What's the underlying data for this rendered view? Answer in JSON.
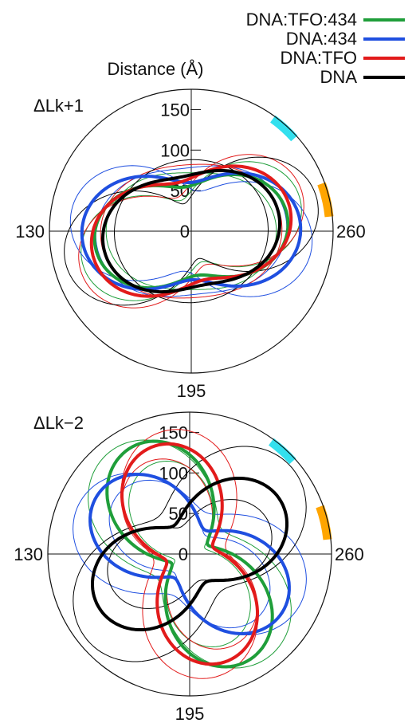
{
  "chart_data": {
    "type": "polar-line",
    "legend": {
      "placement": "top-right",
      "entries": [
        {
          "label": "DNA:TFO:434",
          "color": "#1f9e3a"
        },
        {
          "label": "DNA:434",
          "color": "#1f4fe0"
        },
        {
          "label": "DNA:TFO",
          "color": "#e21b1b"
        },
        {
          "label": "DNA",
          "color": "#000000"
        }
      ]
    },
    "radial_axis": {
      "label": "Distance (Å)",
      "ticks": [
        0,
        50,
        100,
        150
      ],
      "max": 175
    },
    "angular_labels": {
      "left": "130",
      "right": "260",
      "bottom": "195"
    },
    "highlight_colors": {
      "cyan": "#33e0ee",
      "orange": "#ffa500"
    },
    "panels": [
      {
        "label": "ΔLk+1",
        "highlights": [
          {
            "color": "cyan",
            "start_deg": 42,
            "end_deg": 54
          },
          {
            "color": "orange",
            "start_deg": 6,
            "end_deg": 20
          }
        ],
        "series": [
          {
            "name": "DNA:TFO:434",
            "weight": "thick",
            "lobe_deg": 8,
            "r_lobe": 120,
            "r_pinch": 55
          },
          {
            "name": "DNA:434",
            "weight": "thick",
            "lobe_deg": 2,
            "r_lobe": 135,
            "r_pinch": 60
          },
          {
            "name": "DNA:TFO",
            "weight": "thick",
            "lobe_deg": 14,
            "r_lobe": 125,
            "r_pinch": 62
          },
          {
            "name": "DNA",
            "weight": "thick",
            "lobe_deg": 11,
            "r_lobe": 110,
            "r_pinch": 68
          },
          {
            "name": "DNA:TFO:434",
            "weight": "thin",
            "lobe_deg": 18,
            "r_lobe": 140,
            "r_pinch": 40
          },
          {
            "name": "DNA:TFO:434",
            "weight": "thin",
            "lobe_deg": 0,
            "r_lobe": 105,
            "r_pinch": 72
          },
          {
            "name": "DNA:434",
            "weight": "thin",
            "lobe_deg": -8,
            "r_lobe": 150,
            "r_pinch": 50
          },
          {
            "name": "DNA:434",
            "weight": "thin",
            "lobe_deg": 6,
            "r_lobe": 118,
            "r_pinch": 78
          },
          {
            "name": "DNA:TFO",
            "weight": "thin",
            "lobe_deg": 22,
            "r_lobe": 145,
            "r_pinch": 45
          },
          {
            "name": "DNA:TFO",
            "weight": "thin",
            "lobe_deg": 4,
            "r_lobe": 112,
            "r_pinch": 82
          },
          {
            "name": "DNA",
            "weight": "thin",
            "lobe_deg": 15,
            "r_lobe": 160,
            "r_pinch": 35
          },
          {
            "name": "DNA",
            "weight": "thin",
            "lobe_deg": 9,
            "r_lobe": 95,
            "r_pinch": 88
          }
        ]
      },
      {
        "label": "ΔLk−2",
        "highlights": [
          {
            "color": "cyan",
            "start_deg": 42,
            "end_deg": 54
          },
          {
            "color": "orange",
            "start_deg": 6,
            "end_deg": 20
          }
        ],
        "series": [
          {
            "name": "DNA:TFO:434",
            "weight": "thick",
            "lobe_deg": 118,
            "r_lobe": 150,
            "r_pinch": 25
          },
          {
            "name": "DNA:434",
            "weight": "thick",
            "lobe_deg": 148,
            "r_lobe": 135,
            "r_pinch": 35
          },
          {
            "name": "DNA:TFO",
            "weight": "thick",
            "lobe_deg": 108,
            "r_lobe": 140,
            "r_pinch": 30
          },
          {
            "name": "DNA",
            "weight": "thick",
            "lobe_deg": 30,
            "r_lobe": 130,
            "r_pinch": 40
          },
          {
            "name": "DNA:TFO:434",
            "weight": "thin",
            "lobe_deg": 128,
            "r_lobe": 160,
            "r_pinch": 50
          },
          {
            "name": "DNA:TFO:434",
            "weight": "thin",
            "lobe_deg": 112,
            "r_lobe": 120,
            "r_pinch": 20
          },
          {
            "name": "DNA:434",
            "weight": "thin",
            "lobe_deg": 158,
            "r_lobe": 150,
            "r_pinch": 55
          },
          {
            "name": "DNA:434",
            "weight": "thin",
            "lobe_deg": 140,
            "r_lobe": 115,
            "r_pinch": 30
          },
          {
            "name": "DNA:TFO",
            "weight": "thin",
            "lobe_deg": 100,
            "r_lobe": 155,
            "r_pinch": 45
          },
          {
            "name": "DNA:TFO",
            "weight": "thin",
            "lobe_deg": 116,
            "r_lobe": 125,
            "r_pinch": 25
          },
          {
            "name": "DNA",
            "weight": "thin",
            "lobe_deg": 40,
            "r_lobe": 165,
            "r_pinch": 60
          },
          {
            "name": "DNA",
            "weight": "thin",
            "lobe_deg": 20,
            "r_lobe": 105,
            "r_pinch": 35
          }
        ]
      }
    ]
  }
}
